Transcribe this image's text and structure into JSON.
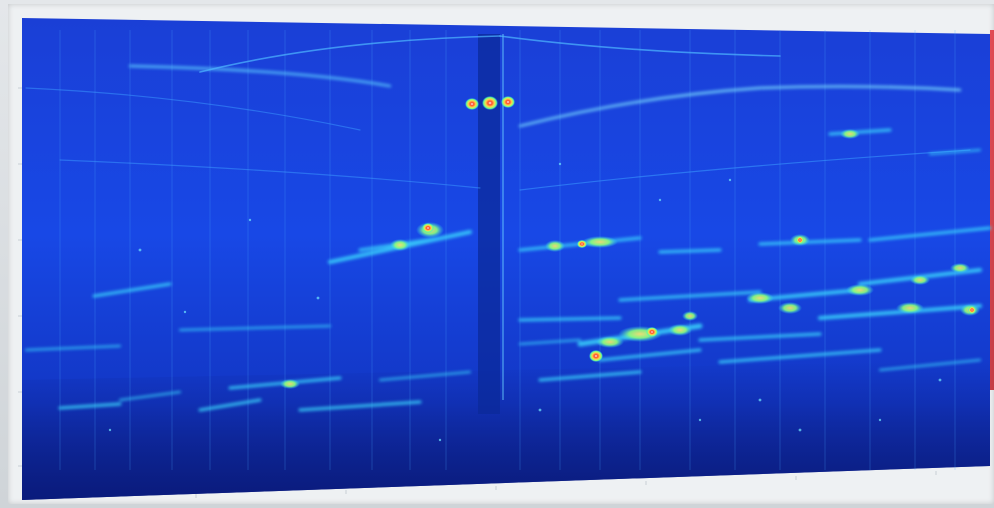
{
  "scene": {
    "type": "photo-of-monitor",
    "content": "spectrogram-heatmap",
    "colormap": [
      "#0a1f8f",
      "#1240d8",
      "#1d7bff",
      "#2ad6ff",
      "#7dff8a",
      "#ffd94a",
      "#ff3a2a"
    ],
    "frame_color": "#eef1f3",
    "accent_edge_color": "#d4283a"
  }
}
